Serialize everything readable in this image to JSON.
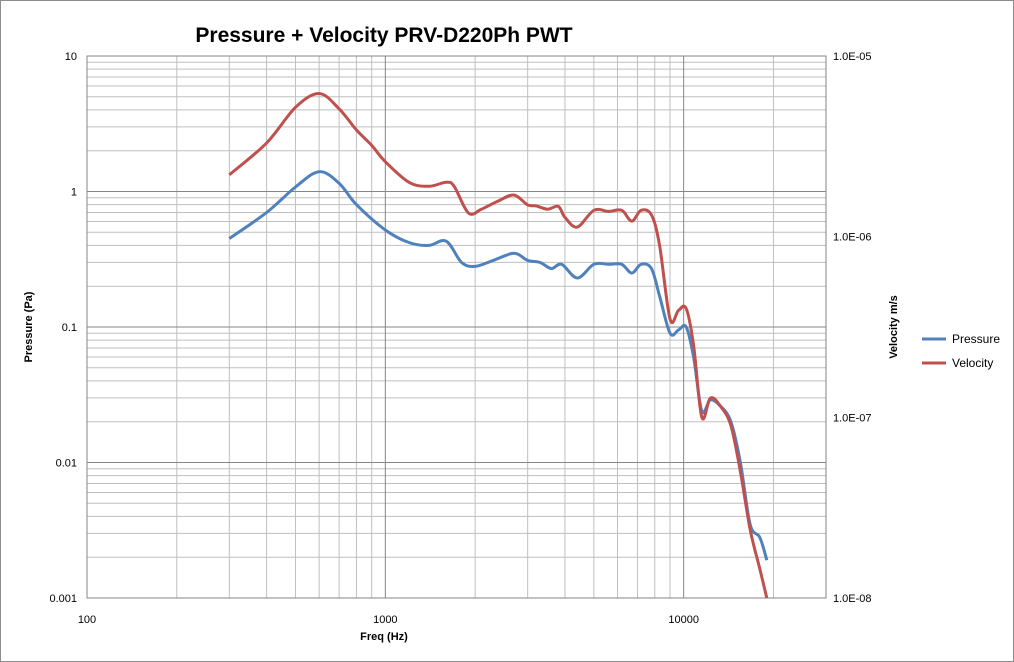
{
  "chart_data": {
    "type": "line",
    "title": "Pressure + Velocity PRV-D220Ph PWT",
    "xlabel": "Freq (Hz)",
    "ylabel": "Pressure (Pa)",
    "y2label": "Velocity m/s",
    "x_scale": "log",
    "y_scale": "log",
    "y2_scale": "log",
    "xlim": [
      100,
      30000
    ],
    "ylim": [
      0.001,
      10
    ],
    "y2lim": [
      1e-08,
      1e-05
    ],
    "x_ticks": [
      "100",
      "1000",
      "10000"
    ],
    "y_ticks": [
      "10",
      "1",
      "0.1",
      "0.01",
      "0.001"
    ],
    "y2_ticks": [
      "1.0E-05",
      "1.0E-06",
      "1.0E-07",
      "1.0E-08"
    ],
    "grid": true,
    "legend_position": "right",
    "series": [
      {
        "name": "Pressure",
        "color": "#4f81bd",
        "axis": "left",
        "x": [
          300,
          400,
          500,
          600,
          700,
          800,
          1000,
          1200,
          1400,
          1600,
          1800,
          2000,
          2300,
          2700,
          3000,
          3300,
          3600,
          3900,
          4400,
          5000,
          5600,
          6200,
          6700,
          7200,
          7800,
          8300,
          9000,
          9600,
          10200,
          10800,
          11500,
          12300,
          13300,
          14400,
          15500,
          16700,
          18000,
          19000
        ],
        "y": [
          0.45,
          0.7,
          1.08,
          1.4,
          1.15,
          0.8,
          0.52,
          0.42,
          0.4,
          0.43,
          0.3,
          0.28,
          0.31,
          0.35,
          0.31,
          0.3,
          0.27,
          0.29,
          0.23,
          0.29,
          0.29,
          0.29,
          0.25,
          0.29,
          0.27,
          0.17,
          0.09,
          0.095,
          0.1,
          0.06,
          0.024,
          0.029,
          0.026,
          0.02,
          0.01,
          0.0035,
          0.0028,
          0.0019
        ]
      },
      {
        "name": "Velocity",
        "color": "#c0504d",
        "axis": "right",
        "x": [
          300,
          400,
          500,
          600,
          700,
          800,
          900,
          1000,
          1200,
          1400,
          1600,
          1700,
          1900,
          2100,
          2400,
          2700,
          3000,
          3200,
          3500,
          3800,
          4000,
          4400,
          5000,
          5600,
          6200,
          6700,
          7200,
          7800,
          8300,
          9000,
          9600,
          10200,
          10800,
          11500,
          12300,
          13300,
          14400,
          15500,
          16700,
          18000,
          19000
        ],
        "y": [
          2.2e-06,
          3.3e-06,
          5.2e-06,
          6.2e-06,
          5.1e-06,
          3.9e-06,
          3.2e-06,
          2.6e-06,
          2e-06,
          1.9e-06,
          2e-06,
          1.9e-06,
          1.35e-06,
          1.42e-06,
          1.58e-06,
          1.7e-06,
          1.5e-06,
          1.48e-06,
          1.42e-06,
          1.47e-06,
          1.28e-06,
          1.13e-06,
          1.4e-06,
          1.38e-06,
          1.4e-06,
          1.22e-06,
          1.4e-06,
          1.32e-06,
          9e-07,
          3.5e-07,
          3.9e-07,
          4e-07,
          2.5e-07,
          1e-07,
          1.28e-07,
          1.15e-07,
          9e-08,
          5e-08,
          2.4e-08,
          1.45e-08,
          1e-08
        ]
      }
    ]
  }
}
